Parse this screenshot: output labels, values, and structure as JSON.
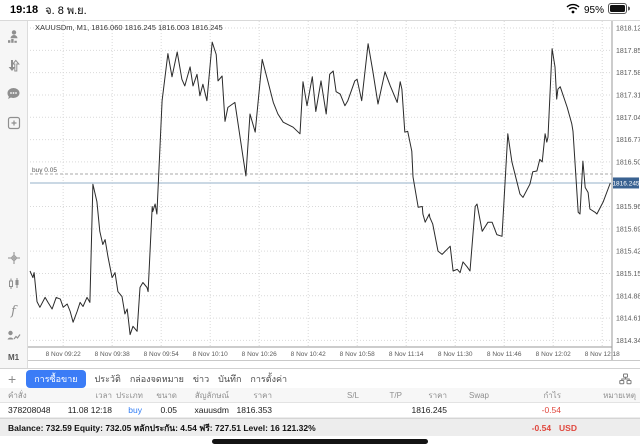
{
  "status_bar": {
    "time": "19:18",
    "date": "จ. 8 พ.ย.",
    "battery_percent": "95%"
  },
  "sidebar": {
    "icons_top": [
      "account-person-chart-icon",
      "buy-sell-arrows-icon",
      "chat-icon",
      "new-order-icon"
    ],
    "icons_bottom": [
      "crosshair-icon",
      "indicators-icon",
      "objects-f-icon",
      "signals-icon"
    ],
    "timeframe": "M1"
  },
  "chart": {
    "title": "XAUUSDm, M1, 1816.060 1816.245 1816.003 1816.245",
    "chart_data": {
      "type": "line",
      "symbol": "XAUUSDm",
      "timeframe": "M1",
      "ylim": [
        1814.26,
        1818.205
      ],
      "y_tick_labels": [
        "1818.120",
        "1817.850",
        "1817.580",
        "1817.310",
        "1817.040",
        "1816.770",
        "1816.500",
        "1815.960",
        "1815.690",
        "1815.420",
        "1815.150",
        "1814.880",
        "1814.610",
        "1814.340"
      ],
      "x_labels": [
        "8 Nov 09:22",
        "8 Nov 09:38",
        "8 Nov 09:54",
        "8 Nov 10:10",
        "8 Nov 10:26",
        "8 Nov 10:42",
        "8 Nov 10:58",
        "8 Nov 11:14",
        "8 Nov 11:30",
        "8 Nov 11:46",
        "8 Nov 12:02",
        "8 Nov 12:18"
      ],
      "x_first_frac": 0.057,
      "x_step_frac": 0.0842,
      "buy_line": {
        "label": "buy 0.05",
        "price": 1816.353
      },
      "current_price": 1816.245,
      "current_price_label": "1816.245",
      "colors": {
        "line": "#2a2a2a",
        "grid": "#d9d9d9",
        "axis": "#9a9a9a",
        "badge_bg": "#3a6291",
        "badge_text": "#ffffff",
        "current_line": "#b9cbdc",
        "buy_line": "#a8a8a8",
        "label_text": "#5a5a5a"
      },
      "series": [
        {
          "name": "price",
          "points": [
            [
              0.0,
              1815.18
            ],
            [
              0.005,
              1815.1
            ],
            [
              0.007,
              1815.16
            ],
            [
              0.012,
              1814.81
            ],
            [
              0.017,
              1814.74
            ],
            [
              0.026,
              1814.86
            ],
            [
              0.031,
              1814.8
            ],
            [
              0.038,
              1814.72
            ],
            [
              0.045,
              1814.86
            ],
            [
              0.052,
              1814.84
            ],
            [
              0.057,
              1814.74
            ],
            [
              0.064,
              1814.78
            ],
            [
              0.069,
              1814.69
            ],
            [
              0.074,
              1814.56
            ],
            [
              0.081,
              1814.69
            ],
            [
              0.086,
              1814.8
            ],
            [
              0.091,
              1814.75
            ],
            [
              0.098,
              1814.86
            ],
            [
              0.103,
              1814.8
            ],
            [
              0.108,
              1816.23
            ],
            [
              0.115,
              1816.02
            ],
            [
              0.12,
              1815.66
            ],
            [
              0.125,
              1815.5
            ],
            [
              0.129,
              1815.56
            ],
            [
              0.134,
              1815.35
            ],
            [
              0.141,
              1815.1
            ],
            [
              0.146,
              1815.16
            ],
            [
              0.151,
              1814.93
            ],
            [
              0.158,
              1814.87
            ],
            [
              0.163,
              1814.66
            ],
            [
              0.167,
              1814.72
            ],
            [
              0.172,
              1814.41
            ],
            [
              0.177,
              1814.51
            ],
            [
              0.184,
              1814.45
            ],
            [
              0.189,
              1814.98
            ],
            [
              0.194,
              1815.04
            ],
            [
              0.201,
              1814.98
            ],
            [
              0.203,
              1814.93
            ],
            [
              0.21,
              1815.96
            ],
            [
              0.211,
              1815.9
            ],
            [
              0.215,
              1815.99
            ],
            [
              0.218,
              1815.87
            ],
            [
              0.227,
              1817.24
            ],
            [
              0.237,
              1817.81
            ],
            [
              0.244,
              1817.53
            ],
            [
              0.253,
              1817.83
            ],
            [
              0.261,
              1817.5
            ],
            [
              0.266,
              1817.42
            ],
            [
              0.275,
              1817.65
            ],
            [
              0.28,
              1817.42
            ],
            [
              0.287,
              1817.56
            ],
            [
              0.292,
              1817.3
            ],
            [
              0.297,
              1817.44
            ],
            [
              0.304,
              1817.24
            ],
            [
              0.313,
              1817.95
            ],
            [
              0.32,
              1817.8
            ],
            [
              0.323,
              1817.48
            ],
            [
              0.33,
              1817.54
            ],
            [
              0.335,
              1816.99
            ],
            [
              0.34,
              1817.16
            ],
            [
              0.352,
              1817.22
            ],
            [
              0.366,
              1816.56
            ],
            [
              0.371,
              1816.33
            ],
            [
              0.378,
              1817.08
            ],
            [
              0.387,
              1816.86
            ],
            [
              0.399,
              1817.74
            ],
            [
              0.409,
              1817.47
            ],
            [
              0.418,
              1817.22
            ],
            [
              0.426,
              1817.08
            ],
            [
              0.435,
              1816.98
            ],
            [
              0.452,
              1816.92
            ],
            [
              0.464,
              1816.84
            ],
            [
              0.469,
              1817.47
            ],
            [
              0.476,
              1817.18
            ],
            [
              0.485,
              1817.53
            ],
            [
              0.491,
              1817.11
            ],
            [
              0.5,
              1817.48
            ],
            [
              0.509,
              1817.08
            ],
            [
              0.515,
              1817.56
            ],
            [
              0.521,
              1817.6
            ],
            [
              0.526,
              1817.35
            ],
            [
              0.533,
              1817.32
            ],
            [
              0.541,
              1817.18
            ],
            [
              0.546,
              1817.24
            ],
            [
              0.558,
              1817.48
            ],
            [
              0.562,
              1817.5
            ],
            [
              0.57,
              1817.24
            ],
            [
              0.581,
              1817.93
            ],
            [
              0.589,
              1817.6
            ],
            [
              0.598,
              1817.2
            ],
            [
              0.61,
              1817.59
            ],
            [
              0.619,
              1817.42
            ],
            [
              0.631,
              1817.22
            ],
            [
              0.636,
              1817.47
            ],
            [
              0.639,
              1817.38
            ],
            [
              0.644,
              1816.86
            ],
            [
              0.649,
              1816.87
            ],
            [
              0.656,
              1816.63
            ],
            [
              0.658,
              1816.32
            ],
            [
              0.667,
              1815.95
            ],
            [
              0.674,
              1815.96
            ],
            [
              0.675,
              1815.87
            ],
            [
              0.679,
              1815.77
            ],
            [
              0.686,
              1815.87
            ],
            [
              0.687,
              1815.83
            ],
            [
              0.692,
              1815.75
            ],
            [
              0.701,
              1815.42
            ],
            [
              0.708,
              1815.38
            ],
            [
              0.722,
              1815.48
            ],
            [
              0.727,
              1815.18
            ],
            [
              0.734,
              1815.2
            ],
            [
              0.739,
              1815.16
            ],
            [
              0.744,
              1815.29
            ],
            [
              0.751,
              1815.23
            ],
            [
              0.756,
              1815.18
            ],
            [
              0.765,
              1815.96
            ],
            [
              0.768,
              1815.99
            ],
            [
              0.777,
              1815.66
            ],
            [
              0.787,
              1815.77
            ],
            [
              0.794,
              1815.77
            ],
            [
              0.802,
              1815.62
            ],
            [
              0.811,
              1815.6
            ],
            [
              0.821,
              1816.84
            ],
            [
              0.828,
              1816.5
            ],
            [
              0.842,
              1816.11
            ],
            [
              0.847,
              1816.07
            ],
            [
              0.859,
              1816.23
            ],
            [
              0.864,
              1816.38
            ],
            [
              0.871,
              1816.39
            ],
            [
              0.876,
              1816.53
            ],
            [
              0.88,
              1816.5
            ],
            [
              0.885,
              1816.84
            ],
            [
              0.888,
              1816.74
            ],
            [
              0.89,
              1816.8
            ],
            [
              0.897,
              1817.87
            ],
            [
              0.902,
              1817.65
            ],
            [
              0.905,
              1817.26
            ],
            [
              0.907,
              1817.38
            ],
            [
              0.911,
              1817.41
            ],
            [
              0.923,
              1817.16
            ],
            [
              0.931,
              1816.96
            ],
            [
              0.933,
              1816.87
            ],
            [
              0.942,
              1815.89
            ],
            [
              0.945,
              1815.87
            ],
            [
              0.95,
              1816.51
            ],
            [
              0.954,
              1816.19
            ],
            [
              0.959,
              1816.13
            ],
            [
              0.962,
              1815.93
            ],
            [
              0.971,
              1815.89
            ],
            [
              0.974,
              1815.87
            ],
            [
              0.985,
              1816.02
            ],
            [
              0.997,
              1816.245
            ]
          ]
        }
      ]
    }
  },
  "tabbar": {
    "add_label": "+",
    "items": [
      {
        "label": "การซื้อขาย",
        "selected": true
      },
      {
        "label": "ประวัติ",
        "selected": false
      },
      {
        "label": "กล่องจดหมาย",
        "selected": false
      },
      {
        "label": "ข่าว",
        "selected": false
      },
      {
        "label": "บันทึก",
        "selected": false
      },
      {
        "label": "การตั้งค่า",
        "selected": false
      }
    ]
  },
  "positions_table": {
    "headers": [
      "คำสั่ง",
      "เวลา",
      "ประเภท",
      "ขนาด",
      "สัญลักษณ์",
      "ราคา",
      "S/L",
      "T/P",
      "ราคา",
      "Swap",
      "กำไร",
      "หมายเหตุ"
    ],
    "rows": [
      [
        "378208048",
        "11.08 12:18",
        "buy",
        "0.05",
        "xauusdm",
        "1816.353",
        "",
        "",
        "1816.245",
        "",
        "-0.54",
        ""
      ]
    ]
  },
  "summary": {
    "text": "Balance: 732.59 Equity: 732.05 หลักประกัน: 4.54 ฟรี: 727.51 Level: 16 121.32%",
    "profit": "-0.54",
    "currency": "USD"
  }
}
